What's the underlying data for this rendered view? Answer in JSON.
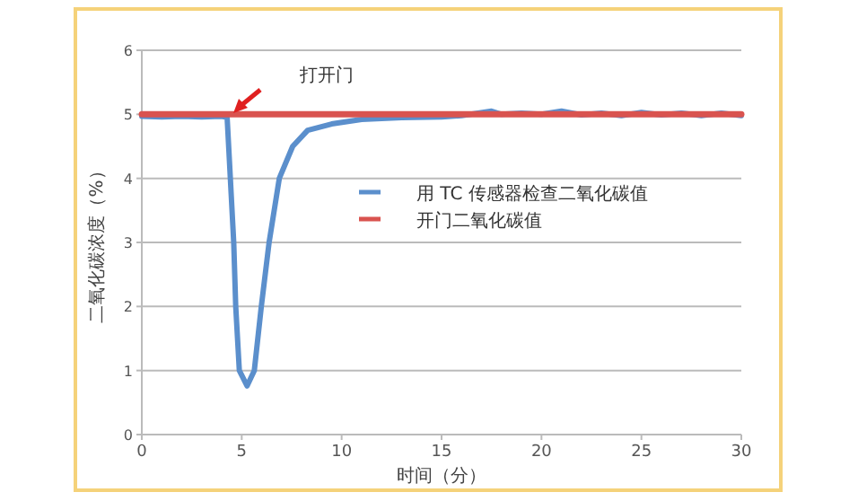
{
  "chart_data": {
    "type": "line",
    "xlabel": "时间（分）",
    "ylabel": "二氧化碳浓度（%）",
    "xlim": [
      0,
      30
    ],
    "ylim": [
      0,
      6
    ],
    "xticks": [
      0,
      5,
      10,
      15,
      20,
      25,
      30
    ],
    "yticks": [
      0,
      1,
      2,
      3,
      4,
      5,
      6
    ],
    "grid": "y",
    "legend": "right",
    "annotations": [
      "打开门"
    ],
    "series": [
      {
        "name": "用 TC 传感器检查二氧化碳值",
        "color": "#5b8fcc",
        "x": [
          0,
          1,
          2,
          3,
          4,
          4.27,
          4.6,
          4.7,
          4.88,
          5.27,
          5.63,
          5.98,
          6.37,
          6.88,
          7.55,
          8.3,
          9.5,
          11,
          13,
          15,
          16,
          17.5,
          18,
          19,
          20,
          21,
          22,
          23,
          24,
          25,
          26,
          27,
          28,
          29,
          30
        ],
        "values": [
          4.97,
          4.96,
          4.97,
          4.96,
          4.97,
          4.95,
          3,
          2,
          1,
          0.76,
          1,
          2,
          3,
          4,
          4.5,
          4.75,
          4.85,
          4.92,
          4.95,
          4.96,
          4.98,
          5.05,
          5.0,
          5.02,
          5.0,
          5.05,
          4.99,
          5.02,
          4.98,
          5.03,
          4.99,
          5.02,
          4.98,
          5.02,
          4.98
        ]
      },
      {
        "name": "开门二氧化碳值",
        "color": "#d9534f",
        "x": [
          0,
          30
        ],
        "values": [
          5,
          5
        ]
      }
    ]
  }
}
